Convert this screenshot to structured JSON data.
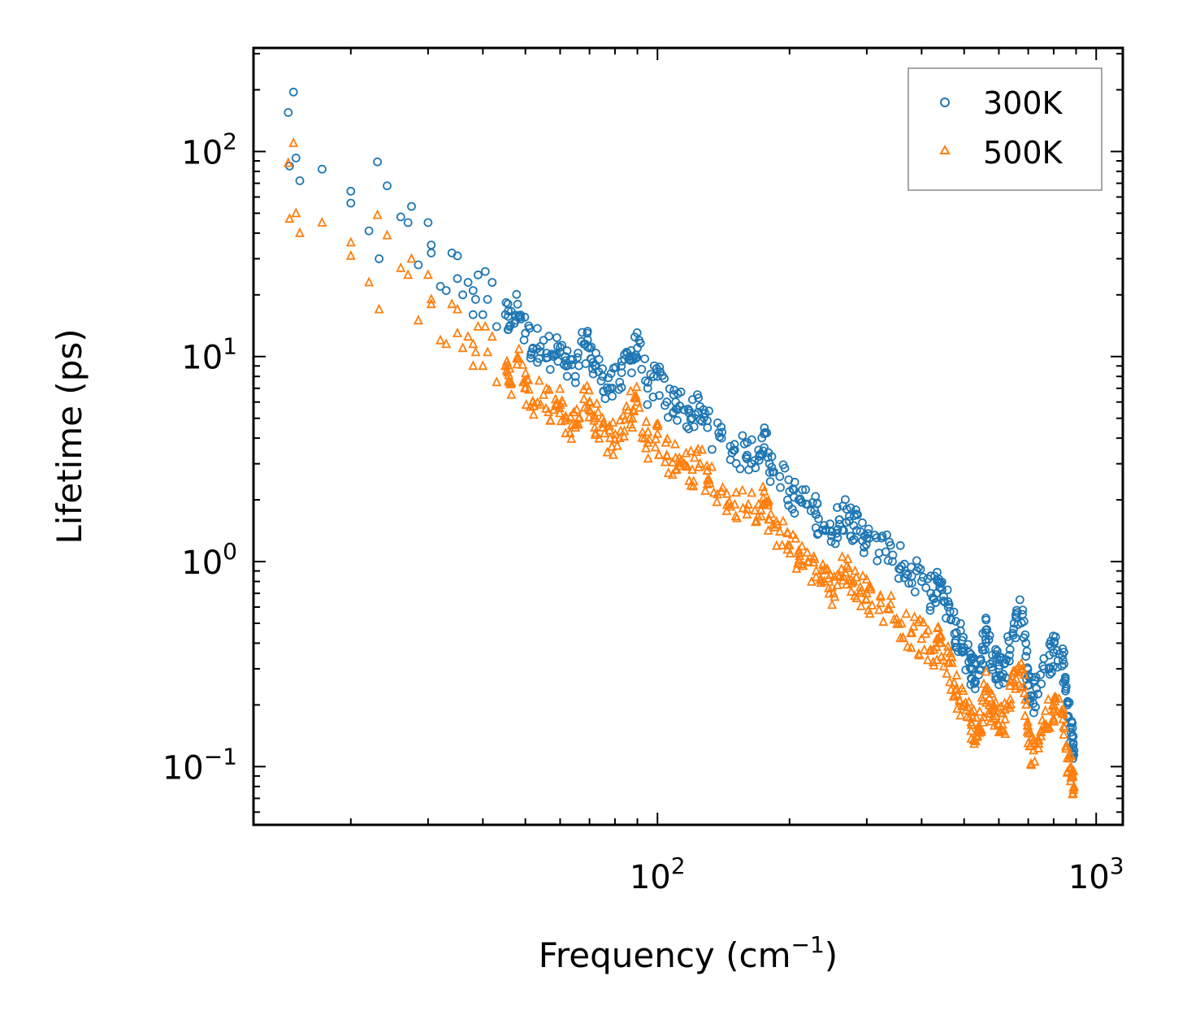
{
  "chart_data": {
    "type": "scatter",
    "title": "",
    "xlabel": "Frequency (cm⁻¹)",
    "xlabel_base": "Frequency (cm",
    "xlabel_sup": "−1",
    "xlabel_end": ")",
    "ylabel": "Lifetime (ps)",
    "xscale": "log",
    "yscale": "log",
    "xlim": [
      12,
      1150
    ],
    "ylim": [
      0.052,
      320
    ],
    "x_major_ticks": [
      {
        "value": 100,
        "base": "10",
        "exp": "2"
      },
      {
        "value": 1000,
        "base": "10",
        "exp": "3"
      }
    ],
    "y_major_ticks": [
      {
        "value": 0.1,
        "base": "10",
        "exp": "−1"
      },
      {
        "value": 1,
        "base": "10",
        "exp": "0"
      },
      {
        "value": 10,
        "base": "10",
        "exp": "1"
      },
      {
        "value": 100,
        "base": "10",
        "exp": "2"
      }
    ],
    "legend_position": "top-right",
    "series": [
      {
        "name": "300K",
        "marker": "circle",
        "color": "#1f77b4",
        "points": [
          [
            14.4,
            155
          ],
          [
            14.8,
            195
          ],
          [
            15.0,
            93
          ],
          [
            15.3,
            72
          ],
          [
            14.5,
            85
          ],
          [
            17.2,
            82
          ],
          [
            20,
            64
          ],
          [
            20,
            56
          ],
          [
            22,
            41
          ],
          [
            23,
            89
          ],
          [
            23.2,
            30
          ],
          [
            24.2,
            68
          ],
          [
            26,
            48
          ],
          [
            27,
            45
          ],
          [
            27.5,
            54
          ],
          [
            28.5,
            28
          ],
          [
            30,
            45
          ],
          [
            30.5,
            35
          ],
          [
            30.5,
            32
          ],
          [
            32,
            22
          ],
          [
            33,
            21
          ],
          [
            34,
            32
          ],
          [
            35,
            31
          ],
          [
            35,
            24
          ],
          [
            36,
            20
          ],
          [
            37,
            23
          ],
          [
            38,
            16
          ],
          [
            38,
            21
          ],
          [
            38.5,
            19
          ],
          [
            39,
            25
          ],
          [
            40,
            16
          ],
          [
            40.5,
            26
          ],
          [
            41,
            19
          ],
          [
            42,
            23
          ],
          [
            43,
            14
          ],
          [
            45,
            16
          ],
          [
            46,
            14
          ],
          [
            48,
            18
          ],
          [
            50,
            13
          ],
          [
            52,
            11
          ],
          [
            55,
            12
          ],
          [
            58,
            10
          ],
          [
            60,
            10.5
          ],
          [
            62,
            9
          ],
          [
            65,
            8
          ],
          [
            68,
            11.5
          ],
          [
            70,
            11
          ],
          [
            72,
            9
          ],
          [
            75,
            8
          ],
          [
            78,
            7
          ],
          [
            82,
            7.5
          ],
          [
            85,
            10.5
          ],
          [
            88,
            10
          ],
          [
            90,
            11
          ],
          [
            95,
            7
          ],
          [
            100,
            8
          ],
          [
            105,
            6
          ],
          [
            110,
            6
          ],
          [
            115,
            5.5
          ],
          [
            120,
            5
          ],
          [
            125,
            5.7
          ],
          [
            130,
            4.5
          ],
          [
            140,
            4
          ],
          [
            150,
            3.5
          ],
          [
            160,
            3.3
          ],
          [
            170,
            3.5
          ],
          [
            175,
            4.2
          ],
          [
            180,
            3
          ],
          [
            190,
            2.6
          ],
          [
            200,
            2.2
          ],
          [
            210,
            2
          ],
          [
            220,
            1.9
          ],
          [
            230,
            1.7
          ],
          [
            240,
            1.5
          ],
          [
            250,
            1.4
          ],
          [
            260,
            1.6
          ],
          [
            270,
            1.8
          ],
          [
            280,
            1.5
          ],
          [
            290,
            1.4
          ],
          [
            300,
            1.3
          ],
          [
            320,
            1.1
          ],
          [
            340,
            1.2
          ],
          [
            360,
            0.95
          ],
          [
            380,
            0.85
          ],
          [
            400,
            0.8
          ],
          [
            420,
            0.7
          ],
          [
            440,
            0.75
          ],
          [
            460,
            0.6
          ],
          [
            480,
            0.45
          ],
          [
            500,
            0.38
          ],
          [
            520,
            0.3
          ],
          [
            540,
            0.28
          ],
          [
            560,
            0.45
          ],
          [
            580,
            0.35
          ],
          [
            600,
            0.3
          ],
          [
            620,
            0.32
          ],
          [
            650,
            0.5
          ],
          [
            680,
            0.58
          ],
          [
            700,
            0.25
          ],
          [
            720,
            0.22
          ],
          [
            760,
            0.3
          ],
          [
            800,
            0.36
          ],
          [
            840,
            0.33
          ],
          [
            860,
            0.2
          ],
          [
            880,
            0.14
          ],
          [
            890,
            0.12
          ]
        ]
      },
      {
        "name": "500K",
        "marker": "triangle",
        "color": "#ff7f0e",
        "points": [
          [
            14.4,
            88
          ],
          [
            14.8,
            110
          ],
          [
            15.0,
            50
          ],
          [
            14.5,
            47
          ],
          [
            15.3,
            40
          ],
          [
            17.2,
            45
          ],
          [
            20,
            36
          ],
          [
            20,
            31
          ],
          [
            22,
            23
          ],
          [
            23,
            49
          ],
          [
            23.2,
            17
          ],
          [
            24.2,
            39
          ],
          [
            26,
            27
          ],
          [
            27,
            25
          ],
          [
            27.5,
            30
          ],
          [
            28.5,
            15
          ],
          [
            30,
            25
          ],
          [
            30.5,
            19
          ],
          [
            30.5,
            18
          ],
          [
            32,
            12
          ],
          [
            33,
            11.5
          ],
          [
            34,
            18
          ],
          [
            35,
            17
          ],
          [
            35,
            13
          ],
          [
            36,
            11
          ],
          [
            37,
            12.5
          ],
          [
            38,
            9
          ],
          [
            38,
            11.5
          ],
          [
            38.5,
            10.5
          ],
          [
            39,
            14
          ],
          [
            40,
            9
          ],
          [
            40.5,
            14
          ],
          [
            41,
            10.5
          ],
          [
            42,
            12.5
          ],
          [
            43,
            7.5
          ],
          [
            45,
            9
          ],
          [
            46,
            7.5
          ],
          [
            48,
            10
          ],
          [
            50,
            7
          ],
          [
            52,
            6
          ],
          [
            55,
            6.5
          ],
          [
            58,
            5.5
          ],
          [
            60,
            5.8
          ],
          [
            62,
            5
          ],
          [
            65,
            4.5
          ],
          [
            68,
            6.2
          ],
          [
            70,
            6
          ],
          [
            72,
            5
          ],
          [
            75,
            4.5
          ],
          [
            78,
            4
          ],
          [
            82,
            4
          ],
          [
            85,
            5.7
          ],
          [
            88,
            5.5
          ],
          [
            90,
            6
          ],
          [
            95,
            3.8
          ],
          [
            100,
            4.2
          ],
          [
            105,
            3.3
          ],
          [
            110,
            3.2
          ],
          [
            115,
            3
          ],
          [
            120,
            2.8
          ],
          [
            125,
            3
          ],
          [
            130,
            2.5
          ],
          [
            140,
            2.2
          ],
          [
            150,
            1.9
          ],
          [
            160,
            1.8
          ],
          [
            170,
            1.9
          ],
          [
            175,
            2.2
          ],
          [
            180,
            1.6
          ],
          [
            190,
            1.4
          ],
          [
            200,
            1.2
          ],
          [
            210,
            1.1
          ],
          [
            220,
            1
          ],
          [
            230,
            0.9
          ],
          [
            240,
            0.8
          ],
          [
            250,
            0.75
          ],
          [
            260,
            0.85
          ],
          [
            270,
            0.95
          ],
          [
            280,
            0.8
          ],
          [
            290,
            0.75
          ],
          [
            300,
            0.7
          ],
          [
            320,
            0.58
          ],
          [
            340,
            0.62
          ],
          [
            360,
            0.5
          ],
          [
            380,
            0.45
          ],
          [
            400,
            0.42
          ],
          [
            420,
            0.37
          ],
          [
            440,
            0.4
          ],
          [
            460,
            0.32
          ],
          [
            480,
            0.24
          ],
          [
            500,
            0.2
          ],
          [
            520,
            0.16
          ],
          [
            540,
            0.15
          ],
          [
            560,
            0.24
          ],
          [
            580,
            0.19
          ],
          [
            600,
            0.16
          ],
          [
            620,
            0.17
          ],
          [
            650,
            0.26
          ],
          [
            680,
            0.3
          ],
          [
            700,
            0.13
          ],
          [
            720,
            0.12
          ],
          [
            760,
            0.16
          ],
          [
            800,
            0.19
          ],
          [
            840,
            0.17
          ],
          [
            860,
            0.11
          ],
          [
            880,
            0.09
          ],
          [
            890,
            0.08
          ]
        ]
      }
    ]
  }
}
